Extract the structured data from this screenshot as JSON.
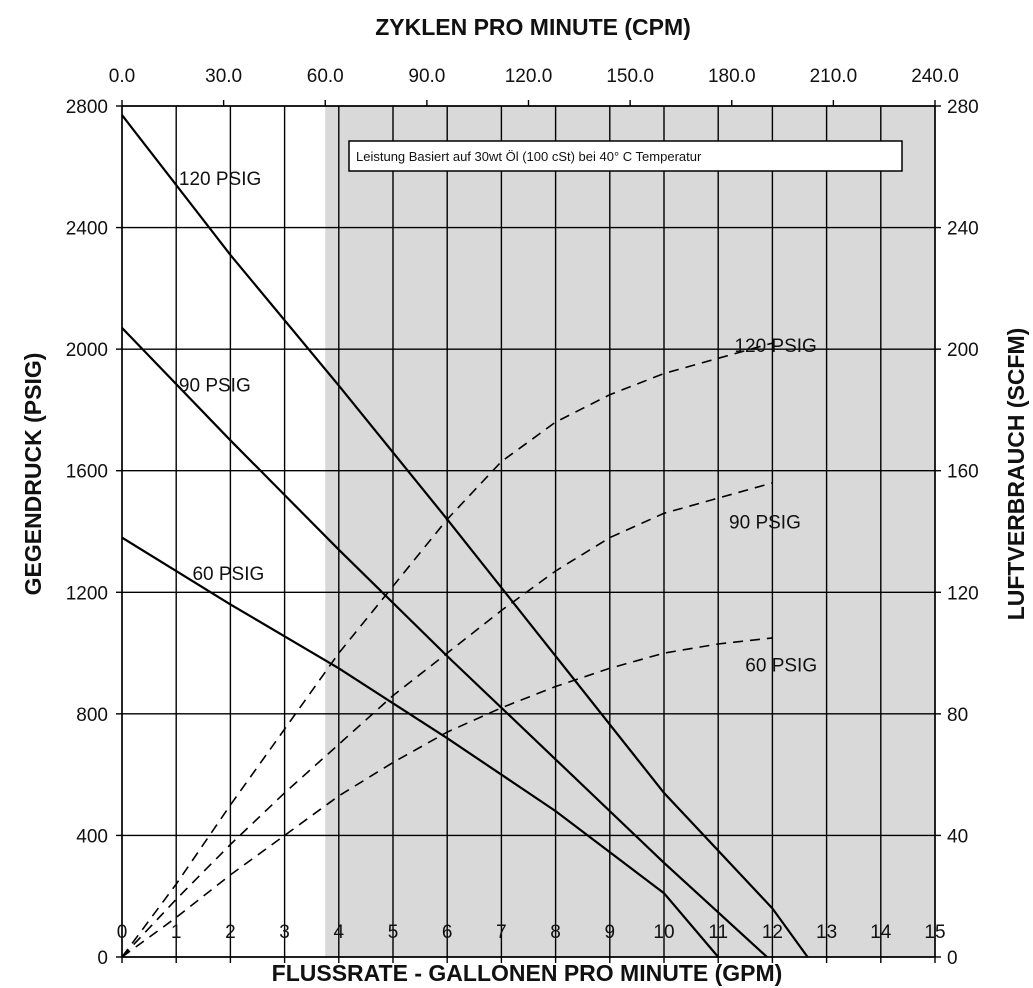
{
  "chart_data": {
    "type": "line",
    "top_axis": {
      "title": "ZYKLEN PRO MINUTE (CPM)",
      "range": [
        0,
        240
      ],
      "ticks": [
        "0.0",
        "30.0",
        "60.0",
        "90.0",
        "120.0",
        "150.0",
        "180.0",
        "210.0",
        "240.0"
      ]
    },
    "bottom_axis": {
      "title": "FLUSSRATE - GALLONEN PRO MINUTE (GPM)",
      "range": [
        0,
        15
      ],
      "ticks": [
        "0",
        "1",
        "2",
        "3",
        "4",
        "5",
        "6",
        "7",
        "8",
        "9",
        "10",
        "11",
        "12",
        "13",
        "14",
        "15"
      ]
    },
    "left_axis": {
      "title": "GEGENDRUCK (PSIG)",
      "range": [
        0,
        2800
      ],
      "ticks": [
        "0",
        "400",
        "800",
        "1200",
        "1600",
        "2000",
        "2400",
        "2800"
      ]
    },
    "right_axis": {
      "title": "LUFTVERBRAUCH (SCFM)",
      "range": [
        0,
        280
      ],
      "ticks": [
        "0",
        "40",
        "80",
        "120",
        "160",
        "200",
        "240",
        "280"
      ]
    },
    "grid": true,
    "shaded_region": {
      "x_from": 3.75,
      "x_to": 15,
      "color": "#d9d9d9"
    },
    "annotation": "Leistung Basiert auf 30wt Öl (100 cSt) bei 40° C Temperatur",
    "pressure_series": [
      {
        "name": "120 PSIG",
        "axis": "left",
        "style": "solid",
        "x": [
          0,
          2,
          4,
          6,
          8,
          10,
          12,
          12.65
        ],
        "y": [
          2770,
          2310,
          1880,
          1440,
          990,
          540,
          160,
          0
        ]
      },
      {
        "name": "90 PSIG",
        "axis": "left",
        "style": "solid",
        "x": [
          0,
          2,
          4,
          6,
          8,
          10,
          11.9
        ],
        "y": [
          2070,
          1700,
          1340,
          990,
          650,
          310,
          0
        ]
      },
      {
        "name": "60 PSIG",
        "axis": "left",
        "style": "solid",
        "x": [
          0,
          2,
          4,
          6,
          8,
          10,
          11.0
        ],
        "y": [
          1380,
          1160,
          950,
          720,
          480,
          210,
          0
        ]
      }
    ],
    "air_series": [
      {
        "name": "120 PSIG",
        "axis": "right",
        "style": "dashed",
        "x": [
          0,
          1,
          2,
          3,
          4,
          5,
          6,
          7,
          8,
          9,
          10,
          11,
          12
        ],
        "y": [
          0,
          24,
          50,
          75,
          100,
          122,
          144,
          163,
          176,
          185,
          192,
          197,
          202
        ]
      },
      {
        "name": "90 PSIG",
        "axis": "right",
        "style": "dashed",
        "x": [
          0,
          1,
          2,
          3,
          4,
          5,
          6,
          7,
          8,
          9,
          10,
          11,
          12
        ],
        "y": [
          0,
          19,
          37,
          54,
          70,
          86,
          100,
          114,
          127,
          138,
          146,
          151,
          156
        ]
      },
      {
        "name": "60 PSIG",
        "axis": "right",
        "style": "dashed",
        "x": [
          0,
          1,
          2,
          3,
          4,
          5,
          6,
          7,
          8,
          9,
          10,
          11,
          12
        ],
        "y": [
          0,
          13,
          27,
          40,
          53,
          64,
          74,
          82,
          89,
          95,
          100,
          103,
          105
        ]
      }
    ],
    "curve_labels": [
      {
        "text": "120 PSIG",
        "x": 1.05,
        "y": 2540
      },
      {
        "text": "90 PSIG",
        "x": 1.05,
        "y": 1860
      },
      {
        "text": "60 PSIG",
        "x": 1.3,
        "y": 1240
      },
      {
        "text": "120 PSIG",
        "x": 11.3,
        "y": 1990
      },
      {
        "text": "90 PSIG",
        "x": 11.2,
        "y": 1410
      },
      {
        "text": "60 PSIG",
        "x": 11.5,
        "y": 940
      }
    ]
  }
}
